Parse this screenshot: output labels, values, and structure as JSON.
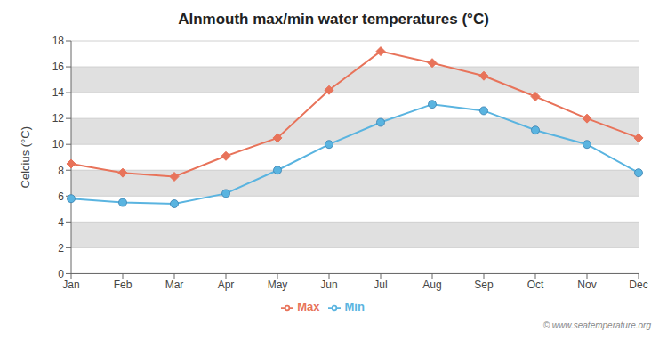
{
  "chart_data": {
    "type": "line",
    "title": "Alnmouth max/min water temperatures (°C)",
    "ylabel": "Celcius (°C)",
    "categories": [
      "Jan",
      "Feb",
      "Mar",
      "Apr",
      "May",
      "Jun",
      "Jul",
      "Aug",
      "Sep",
      "Oct",
      "Nov",
      "Dec"
    ],
    "series": [
      {
        "name": "Max",
        "color": "#e8735a",
        "marker": "diamond",
        "values": [
          8.5,
          7.8,
          7.5,
          9.1,
          10.5,
          14.2,
          17.2,
          16.3,
          15.3,
          13.7,
          12.0,
          10.5
        ]
      },
      {
        "name": "Min",
        "color": "#5ab4e0",
        "marker": "circle",
        "values": [
          5.8,
          5.5,
          5.4,
          6.2,
          8.0,
          10.0,
          11.7,
          13.1,
          12.6,
          11.1,
          10.0,
          7.8
        ]
      }
    ],
    "ylim": [
      0,
      18
    ],
    "yticks": [
      0,
      2,
      4,
      6,
      8,
      10,
      12,
      14,
      16,
      18
    ],
    "grid": true,
    "legend": "bottom",
    "annotations": [
      "© www.seatemperature.org"
    ]
  }
}
